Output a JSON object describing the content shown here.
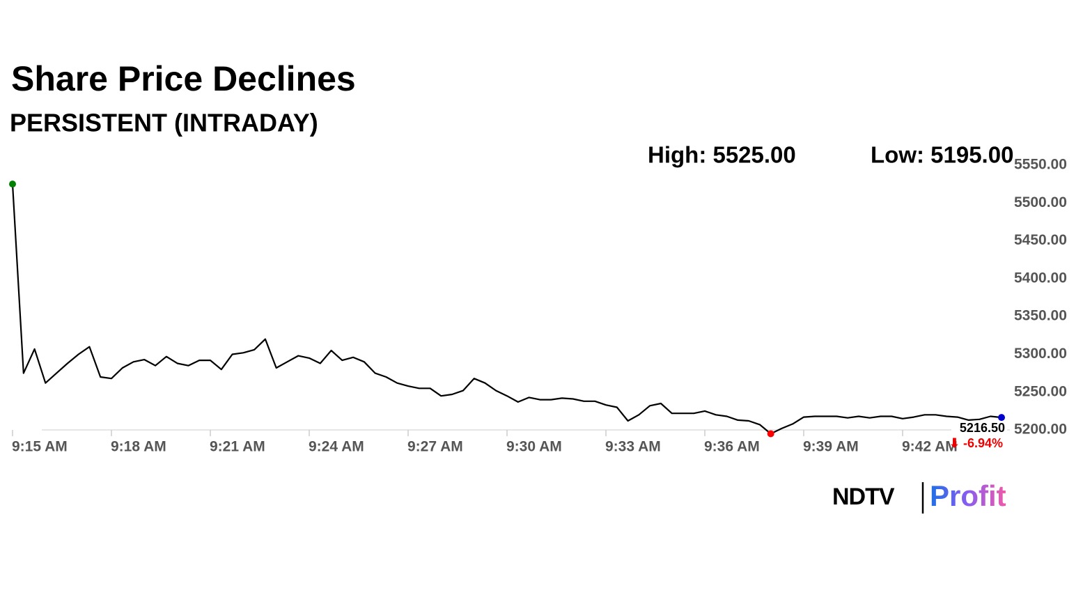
{
  "chart_data": {
    "type": "line",
    "title": "Share Price Declines",
    "subtitle": "PERSISTENT (INTRADAY)",
    "high_label": "High: 5525.00",
    "low_label": "Low: 5195.00",
    "last_label": "5216.50",
    "change_label": "⬇ -6.94%",
    "categories": [
      "9:15 AM",
      null,
      null,
      null,
      null,
      null,
      null,
      null,
      null,
      "9:18 AM",
      null,
      null,
      null,
      null,
      null,
      null,
      null,
      null,
      "9:21 AM",
      null,
      null,
      null,
      null,
      null,
      null,
      null,
      null,
      "9:24 AM",
      null,
      null,
      null,
      null,
      null,
      null,
      null,
      null,
      "9:27 AM",
      null,
      null,
      null,
      null,
      null,
      null,
      null,
      null,
      "9:30 AM",
      null,
      null,
      null,
      null,
      null,
      null,
      null,
      null,
      "9:33 AM",
      null,
      null,
      null,
      null,
      null,
      null,
      null,
      null,
      "9:36 AM",
      null,
      null,
      null,
      null,
      null,
      null,
      null,
      null,
      "9:39 AM",
      null,
      null,
      null,
      null,
      null,
      null,
      null,
      null,
      "9:42 AM",
      null,
      null,
      null,
      null,
      null,
      null,
      null,
      null,
      null
    ],
    "values": [
      5525,
      5275,
      5307,
      5262,
      5275,
      5288,
      5300,
      5310,
      5270,
      5268,
      5282,
      5290,
      5293,
      5285,
      5297,
      5288,
      5285,
      5292,
      5292,
      5280,
      5300,
      5302,
      5306,
      5320,
      5282,
      5290,
      5298,
      5295,
      5288,
      5305,
      5292,
      5296,
      5290,
      5275,
      5270,
      5262,
      5258,
      5255,
      5255,
      5245,
      5247,
      5252,
      5268,
      5262,
      5252,
      5245,
      5237,
      5243,
      5240,
      5240,
      5242,
      5241,
      5238,
      5238,
      5233,
      5230,
      5212,
      5220,
      5232,
      5235,
      5222,
      5222,
      5222,
      5225,
      5220,
      5218,
      5213,
      5212,
      5207,
      5195,
      5202,
      5208,
      5217,
      5218,
      5218,
      5218,
      5216,
      5218,
      5216,
      5218,
      5218,
      5215,
      5217,
      5220,
      5220,
      5218,
      5217,
      5213,
      5214,
      5218,
      5216.5
    ],
    "color": "#000000",
    "high_color": "#008000",
    "low_color": "#ff0000",
    "last_color": "#0000cc",
    "ylim": [
      5190,
      5550
    ],
    "yticks": [
      {
        "value": 5200,
        "label": "5200.00"
      },
      {
        "value": 5250,
        "label": "5250.00"
      },
      {
        "value": 5300,
        "label": "5300.00"
      },
      {
        "value": 5350,
        "label": "5350.00"
      },
      {
        "value": 5400,
        "label": "5400.00"
      },
      {
        "value": 5450,
        "label": "5450.00"
      },
      {
        "value": 5500,
        "label": "5500.00"
      },
      {
        "value": 5550,
        "label": "5550.00"
      }
    ]
  },
  "brand": {
    "left": "NDTV",
    "right": "Profit"
  }
}
